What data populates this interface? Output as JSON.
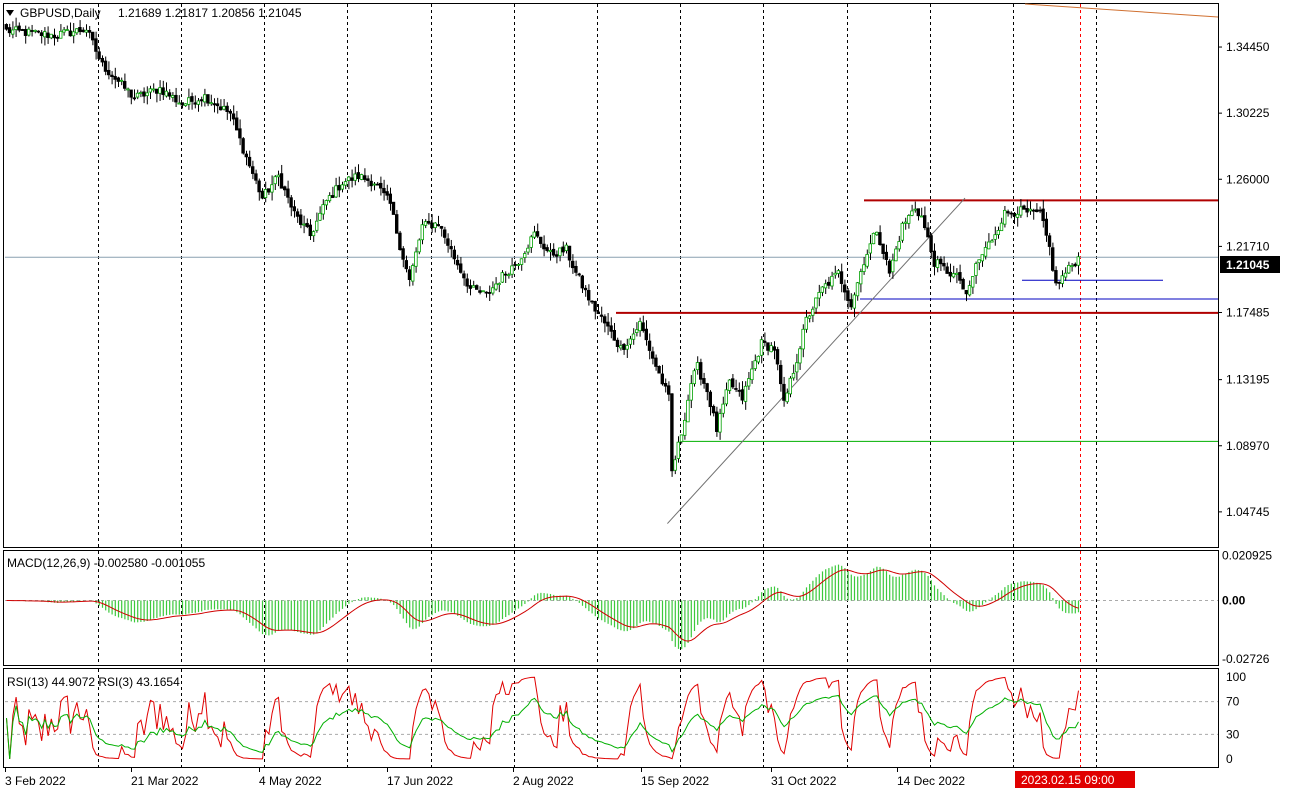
{
  "header": {
    "symbol": "GBPUSD,Daily",
    "ohlc": "1.21689 1.21817 1.20856 1.21045",
    "macd_label": "MACD(12,26,9) -0.002580 -0.001055",
    "rsi_label": "RSI(13) 44.9072  RSI(3) 43.1654"
  },
  "current_price_label": "1.21045",
  "cursor_time_label": "2023.02.15 09:00",
  "colors": {
    "bull": "#00a000",
    "bear": "#000000",
    "resistance": "#b00000",
    "support_green": "#00b000",
    "support_blue": "#0000c0",
    "macd_hist": "#3cc83c",
    "macd_signal": "#d00000",
    "rsi_slow": "#00b000",
    "rsi_fast": "#e00000",
    "trend": "#707070",
    "cursor": "#ff0000"
  },
  "chart_data": {
    "type": "candlestick",
    "price_axis": {
      "min": 1.025,
      "max": 1.372,
      "ticks": [
        "1.34450",
        "1.30225",
        "1.26000",
        "1.21710",
        "1.17485",
        "1.13195",
        "1.08970",
        "1.04745"
      ]
    },
    "x_labels": [
      "3 Feb 2022",
      "21 Mar 2022",
      "4 May 2022",
      "17 Jun 2022",
      "2 Aug 2022",
      "15 Sep 2022",
      "31 Oct 2022",
      "14 Dec 2022"
    ],
    "close_path": [
      [
        0,
        1.355
      ],
      [
        15,
        1.352
      ],
      [
        25,
        1.356
      ],
      [
        30,
        1.333
      ],
      [
        40,
        1.312
      ],
      [
        48,
        1.318
      ],
      [
        55,
        1.308
      ],
      [
        62,
        1.313
      ],
      [
        70,
        1.302
      ],
      [
        75,
        1.274
      ],
      [
        80,
        1.248
      ],
      [
        85,
        1.262
      ],
      [
        90,
        1.238
      ],
      [
        95,
        1.224
      ],
      [
        100,
        1.246
      ],
      [
        105,
        1.258
      ],
      [
        110,
        1.262
      ],
      [
        115,
        1.258
      ],
      [
        120,
        1.244
      ],
      [
        123,
        1.218
      ],
      [
        126,
        1.195
      ],
      [
        130,
        1.23
      ],
      [
        135,
        1.232
      ],
      [
        140,
        1.21
      ],
      [
        145,
        1.19
      ],
      [
        150,
        1.186
      ],
      [
        155,
        1.198
      ],
      [
        160,
        1.208
      ],
      [
        165,
        1.225
      ],
      [
        170,
        1.212
      ],
      [
        175,
        1.215
      ],
      [
        178,
        1.2
      ],
      [
        183,
        1.18
      ],
      [
        188,
        1.165
      ],
      [
        192,
        1.152
      ],
      [
        195,
        1.158
      ],
      [
        198,
        1.168
      ],
      [
        202,
        1.146
      ],
      [
        207,
        1.12
      ],
      [
        208,
        1.073
      ],
      [
        211,
        1.098
      ],
      [
        214,
        1.13
      ],
      [
        216,
        1.14
      ],
      [
        219,
        1.125
      ],
      [
        222,
        1.1
      ],
      [
        226,
        1.13
      ],
      [
        230,
        1.12
      ],
      [
        233,
        1.138
      ],
      [
        236,
        1.155
      ],
      [
        240,
        1.152
      ],
      [
        243,
        1.116
      ],
      [
        247,
        1.145
      ],
      [
        250,
        1.17
      ],
      [
        255,
        1.19
      ],
      [
        260,
        1.2
      ],
      [
        264,
        1.18
      ],
      [
        268,
        1.208
      ],
      [
        272,
        1.228
      ],
      [
        276,
        1.2
      ],
      [
        280,
        1.23
      ],
      [
        284,
        1.242
      ],
      [
        286,
        1.236
      ],
      [
        290,
        1.207
      ],
      [
        295,
        1.2
      ],
      [
        298,
        1.196
      ],
      [
        300,
        1.184
      ],
      [
        303,
        1.205
      ],
      [
        308,
        1.222
      ],
      [
        312,
        1.238
      ],
      [
        316,
        1.24
      ],
      [
        320,
        1.238
      ],
      [
        323,
        1.238
      ],
      [
        326,
        1.216
      ],
      [
        328,
        1.192
      ],
      [
        331,
        1.2
      ],
      [
        335,
        1.21
      ]
    ],
    "last_close": 1.21045,
    "levels": [
      {
        "price": 1.2465,
        "color": "resistance"
      },
      {
        "price": 1.1746,
        "color": "resistance"
      },
      {
        "price": 1.0925,
        "color": "support_green"
      },
      {
        "price": 1.1835,
        "color": "support_blue"
      },
      {
        "price": 1.1955,
        "color": "support_blue"
      }
    ],
    "trendline": [
      [
        207,
        1.04
      ],
      [
        300,
        1.248
      ]
    ],
    "macd": {
      "range": [
        -0.03,
        0.023
      ],
      "ticks": [
        "0.020925",
        "0.00",
        "-0.02726"
      ]
    },
    "rsi": {
      "range": [
        0,
        100
      ],
      "ticks": [
        "100",
        "70",
        "30",
        "0"
      ]
    }
  }
}
